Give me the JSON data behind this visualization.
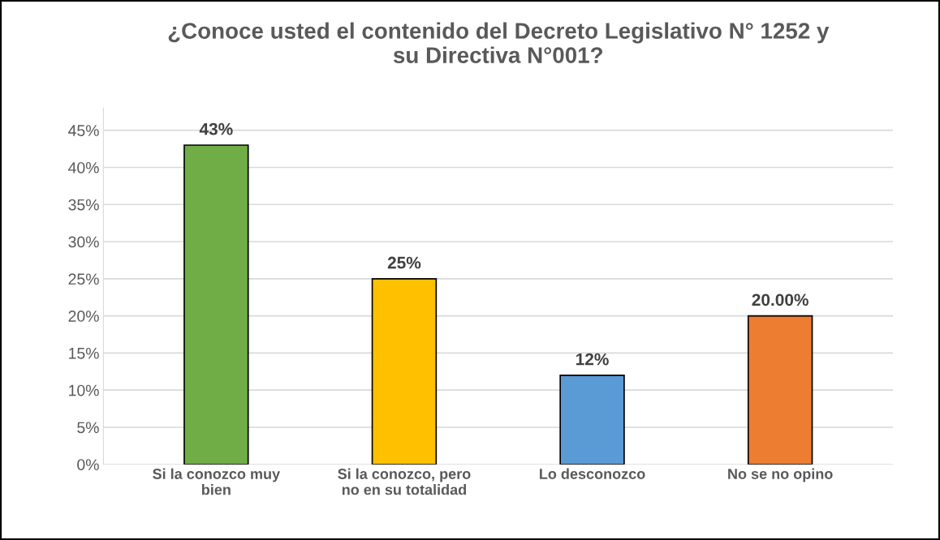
{
  "chart_data": {
    "type": "bar",
    "title": "¿Conoce usted el contenido del Decreto Legislativo N° 1252 y su Directiva N°001?",
    "categories": [
      "Si la conozco muy bien",
      "Si la conozco, pero no en su totalidad",
      "Lo desconozco",
      "No se no opino"
    ],
    "values": [
      43,
      25,
      12,
      20
    ],
    "value_labels": [
      "43%",
      "25%",
      "12%",
      "20.00%"
    ],
    "colors": [
      "#70ad47",
      "#ffc000",
      "#5b9bd5",
      "#ed7d31"
    ],
    "ylim": [
      0,
      48
    ],
    "yticks": [
      {
        "value": 0,
        "label": "0%"
      },
      {
        "value": 5,
        "label": "5%"
      },
      {
        "value": 10,
        "label": "10%"
      },
      {
        "value": 15,
        "label": "15%"
      },
      {
        "value": 20,
        "label": "20%"
      },
      {
        "value": 25,
        "label": "25%"
      },
      {
        "value": 30,
        "label": "30%"
      },
      {
        "value": 35,
        "label": "35%"
      },
      {
        "value": 40,
        "label": "40%"
      },
      {
        "value": 45,
        "label": "45%"
      }
    ],
    "grid": "y"
  }
}
